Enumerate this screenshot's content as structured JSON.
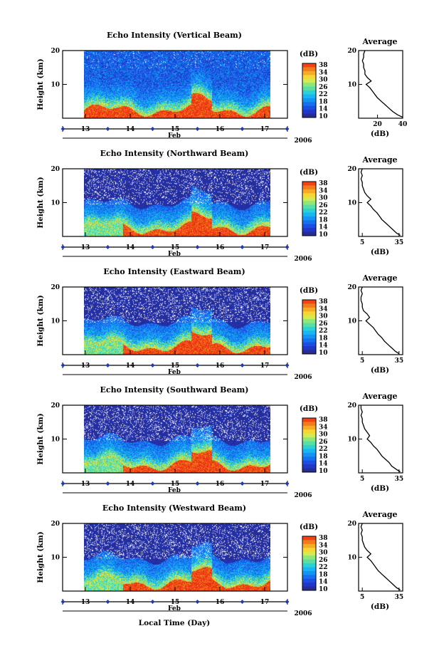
{
  "chart_data": [
    {
      "type": "heatmap",
      "title": "Echo Intensity (Vertical Beam)",
      "ylabel": "Height (km)",
      "xticks": [
        "13",
        "14",
        "15",
        "16",
        "17"
      ],
      "x_month": "Feb",
      "x_year": "2006",
      "yticks": [
        "20",
        "10"
      ],
      "ylim": [
        0,
        20
      ],
      "colorbar": {
        "unit": "(dB)",
        "ticks": [
          "38",
          "34",
          "30",
          "26",
          "22",
          "18",
          "14",
          "10"
        ],
        "range": [
          10,
          38
        ]
      },
      "average": {
        "title": "Average",
        "xlabel": "(dB)",
        "xticks": [
          "20",
          "40"
        ],
        "xlim": [
          5,
          40
        ],
        "heights": [
          0.3,
          1,
          2,
          3,
          4,
          5,
          6,
          7,
          8,
          9,
          10,
          11,
          12,
          13,
          14,
          15,
          16,
          17,
          18,
          19,
          20
        ],
        "values": [
          40,
          36,
          32,
          29,
          26,
          23,
          20,
          18,
          16,
          14,
          11,
          15,
          12,
          10,
          10,
          9,
          9,
          8,
          9,
          9,
          10
        ]
      }
    },
    {
      "type": "heatmap",
      "title": "Echo Intensity (Northward Beam)",
      "ylabel": "Height (km)",
      "xticks": [
        "13",
        "14",
        "15",
        "16",
        "17"
      ],
      "x_month": "Feb",
      "x_year": "2006",
      "yticks": [
        "20",
        "10"
      ],
      "ylim": [
        0,
        20
      ],
      "colorbar": {
        "unit": "(dB)",
        "ticks": [
          "38",
          "34",
          "30",
          "26",
          "22",
          "18",
          "14",
          "10"
        ],
        "range": [
          10,
          38
        ]
      },
      "average": {
        "title": "Average",
        "xlabel": "(dB)",
        "xticks": [
          "5",
          "35"
        ],
        "xlim": [
          2,
          38
        ],
        "heights": [
          0.3,
          1,
          2,
          3,
          4,
          5,
          6,
          7,
          8,
          9,
          10,
          11,
          12,
          13,
          14,
          15,
          16,
          17,
          18,
          19,
          20
        ],
        "values": [
          36,
          33,
          30,
          27,
          24,
          21,
          19,
          17,
          14,
          12,
          9,
          12,
          9,
          7,
          6,
          5,
          5,
          4,
          5,
          4,
          5
        ]
      }
    },
    {
      "type": "heatmap",
      "title": "Echo Intensity (Eastward Beam)",
      "ylabel": "Height (km)",
      "xticks": [
        "13",
        "14",
        "15",
        "16",
        "17"
      ],
      "x_month": "Feb",
      "x_year": "2006",
      "yticks": [
        "20",
        "10"
      ],
      "ylim": [
        0,
        20
      ],
      "colorbar": {
        "unit": "(dB)",
        "ticks": [
          "38",
          "34",
          "30",
          "26",
          "22",
          "18",
          "14",
          "10"
        ],
        "range": [
          10,
          38
        ]
      },
      "average": {
        "title": "Average",
        "xlabel": "(dB)",
        "xticks": [
          "5",
          "35"
        ],
        "xlim": [
          2,
          38
        ],
        "heights": [
          0.3,
          1,
          2,
          3,
          4,
          5,
          6,
          7,
          8,
          9,
          10,
          11,
          12,
          13,
          14,
          15,
          16,
          17,
          18,
          19,
          20
        ],
        "values": [
          35,
          32,
          29,
          26,
          23,
          21,
          18,
          16,
          14,
          11,
          8,
          11,
          9,
          6,
          5,
          5,
          4,
          4,
          5,
          4,
          5
        ]
      }
    },
    {
      "type": "heatmap",
      "title": "Echo Intensity (Southward Beam)",
      "ylabel": "Height (km)",
      "xticks": [
        "13",
        "14",
        "15",
        "16",
        "17"
      ],
      "x_month": "Feb",
      "x_year": "2006",
      "yticks": [
        "20",
        "10"
      ],
      "ylim": [
        0,
        20
      ],
      "colorbar": {
        "unit": "(dB)",
        "ticks": [
          "38",
          "34",
          "30",
          "26",
          "22",
          "18",
          "14",
          "10"
        ],
        "range": [
          10,
          38
        ]
      },
      "average": {
        "title": "Average",
        "xlabel": "(dB)",
        "xticks": [
          "5",
          "35"
        ],
        "xlim": [
          2,
          38
        ],
        "heights": [
          0.3,
          1,
          2,
          3,
          4,
          5,
          6,
          7,
          8,
          9,
          10,
          11,
          12,
          13,
          14,
          15,
          16,
          17,
          18,
          19,
          20
        ],
        "values": [
          36,
          33,
          29,
          27,
          24,
          21,
          19,
          17,
          14,
          12,
          9,
          11,
          9,
          7,
          6,
          5,
          5,
          4,
          5,
          4,
          4
        ]
      }
    },
    {
      "type": "heatmap",
      "title": "Echo Intensity (Westward Beam)",
      "ylabel": "Height (km)",
      "xticks": [
        "13",
        "14",
        "15",
        "16",
        "17"
      ],
      "x_month": "Feb",
      "x_year": "2006",
      "yticks": [
        "20",
        "10"
      ],
      "ylim": [
        0,
        20
      ],
      "colorbar": {
        "unit": "(dB)",
        "ticks": [
          "38",
          "34",
          "30",
          "26",
          "22",
          "18",
          "14",
          "10"
        ],
        "range": [
          10,
          38
        ]
      },
      "average": {
        "title": "Average",
        "xlabel": "(dB)",
        "xticks": [
          "5",
          "35"
        ],
        "xlim": [
          2,
          38
        ],
        "heights": [
          0.3,
          1,
          2,
          3,
          4,
          5,
          6,
          7,
          8,
          9,
          10,
          11,
          12,
          13,
          14,
          15,
          16,
          17,
          18,
          19,
          20
        ],
        "values": [
          36,
          33,
          30,
          27,
          24,
          21,
          18,
          16,
          14,
          12,
          9,
          12,
          9,
          7,
          6,
          5,
          5,
          4,
          5,
          4,
          5
        ]
      }
    }
  ],
  "bottom_label": "Local Time (Day)",
  "colors": {
    "deep": "#2b2f8a",
    "blue": "#1f3ee0",
    "cyan": "#19c8f0",
    "green": "#7fe36a",
    "yellow": "#f5e63a",
    "orange": "#f59a1e",
    "red": "#ee2a14",
    "white": "#ffffff"
  }
}
